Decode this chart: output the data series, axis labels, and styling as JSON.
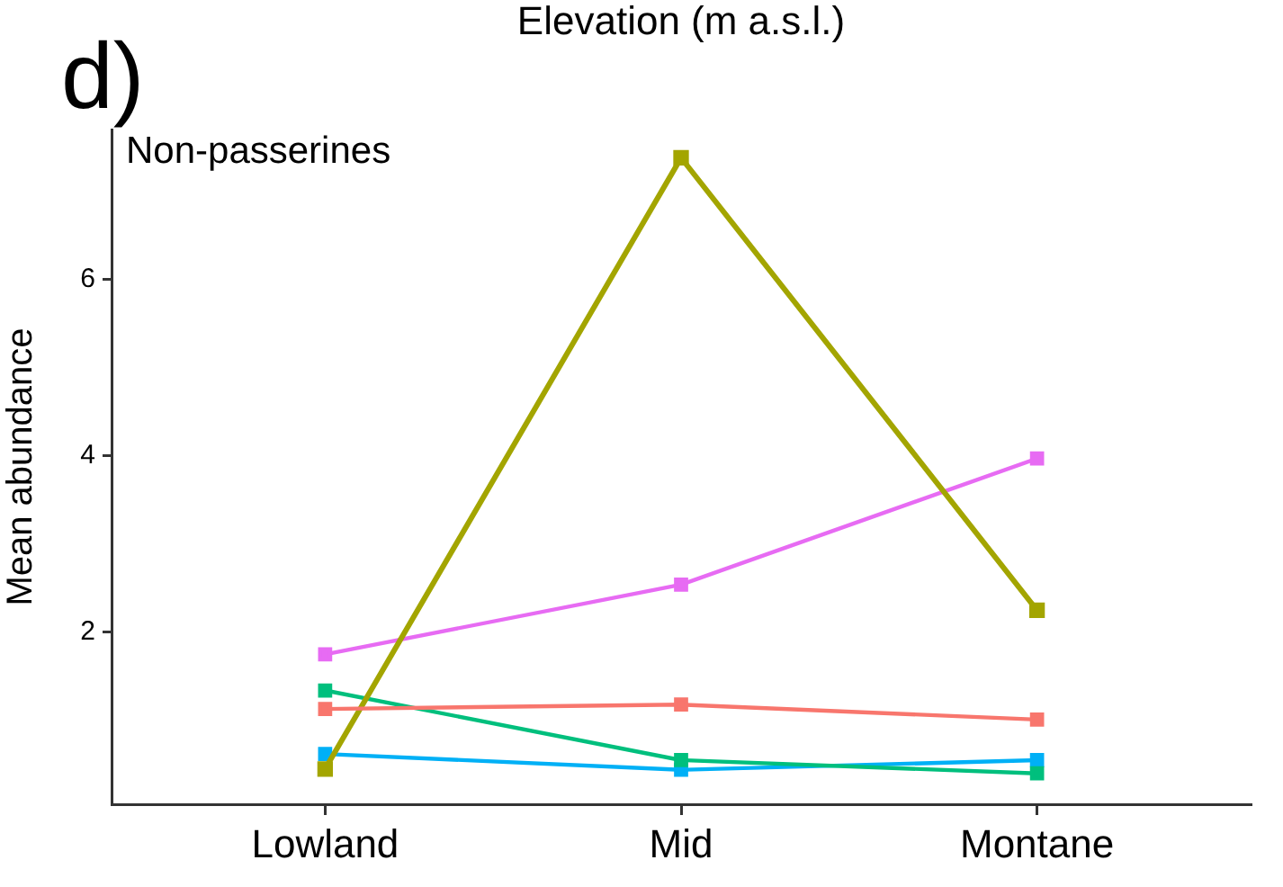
{
  "chart_data": {
    "type": "line",
    "title": "d)",
    "ylabel": "Mean abundance",
    "annotations": [
      "Elevation (m a.s.l.)",
      "Non-passerines"
    ],
    "categories": [
      "Lowland",
      "Mid",
      "Montane"
    ],
    "series": [
      {
        "color": "#f8766d",
        "values": [
          1.13,
          1.18,
          1.01
        ]
      },
      {
        "color": "#a3a500",
        "values": [
          0.45,
          7.38,
          2.25
        ]
      },
      {
        "color": "#00bf7d",
        "values": [
          1.34,
          0.55,
          0.4
        ]
      },
      {
        "color": "#00b0f6",
        "values": [
          0.62,
          0.44,
          0.55
        ]
      },
      {
        "color": "#e76bf3",
        "values": [
          1.75,
          2.54,
          3.97
        ]
      }
    ],
    "ylim": [
      0.05,
      7.7
    ],
    "yticks": [
      2,
      4,
      6
    ],
    "grid": false,
    "legend": false,
    "marker": "square",
    "line_style": "solid"
  }
}
